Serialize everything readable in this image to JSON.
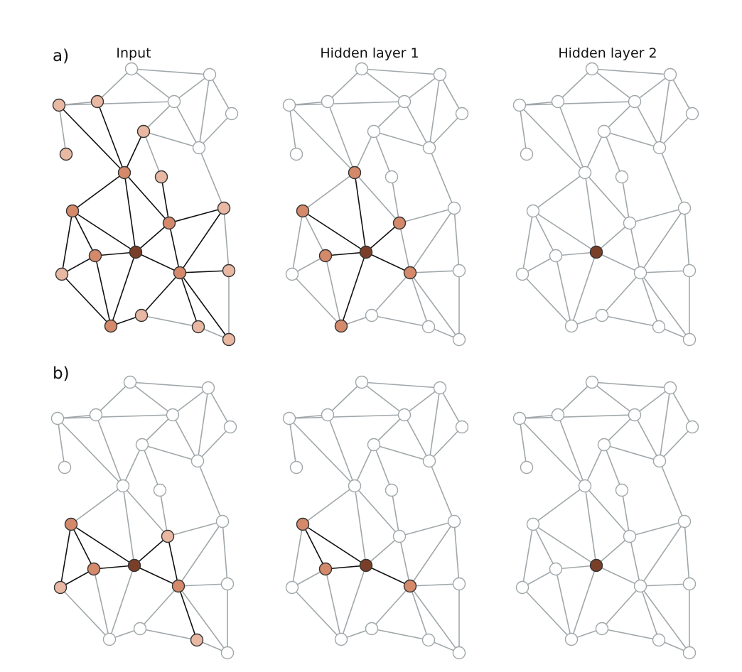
{
  "labels": {
    "row_a": "a)",
    "row_b": "b)",
    "col_input": "Input",
    "col_hidden1": "Hidden layer 1",
    "col_hidden2": "Hidden layer 2"
  },
  "colors": {
    "center": "#7a3f28",
    "neighbor1": "#d4896a",
    "neighbor2": "#e8b8a2",
    "neutral": "#ffffff",
    "edge_gray": "#a0a7aa",
    "edge_active": "#111111",
    "stroke": "#333333"
  }
}
